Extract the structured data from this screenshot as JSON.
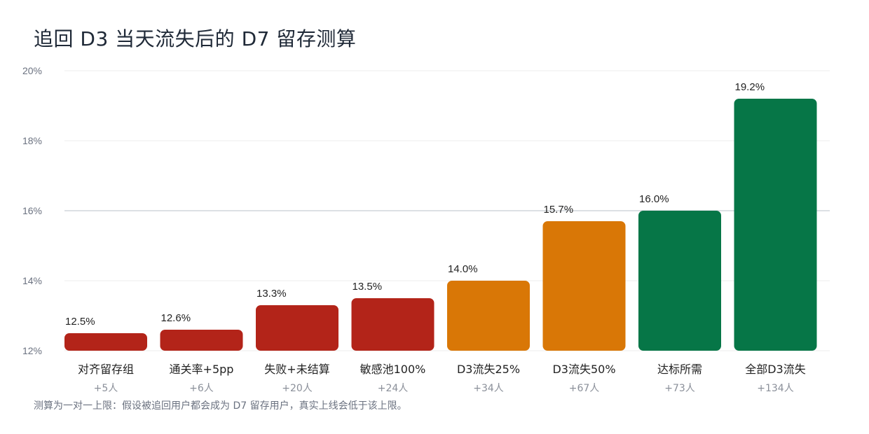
{
  "title": "追回 D3 当天流失后的 D7 留存测算",
  "footnote": "测算为一对一上限：假设被追回用户都会成为 D7 留存用户，真实上线会低于该上限。",
  "colors": {
    "red": "#b32419",
    "orange": "#d97706",
    "green": "#067647",
    "grid": "#eeeeee",
    "baseline": "#d1d5db"
  },
  "chart_data": {
    "type": "bar",
    "title": "追回 D3 当天流失后的 D7 留存测算",
    "ylim": [
      12,
      20
    ],
    "yticks": [
      12,
      14,
      16,
      18,
      20
    ],
    "ytick_labels": [
      "12%",
      "14%",
      "16%",
      "18%",
      "20%"
    ],
    "reference_line": 16,
    "grid": true,
    "categories": [
      "对齐留存组",
      "通关率+5pp",
      "失败+未结算",
      "敏感池100%",
      "D3流失25%",
      "D3流失50%",
      "达标所需",
      "全部D3流失"
    ],
    "sublabels": [
      "+5人",
      "+6人",
      "+20人",
      "+24人",
      "+34人",
      "+67人",
      "+73人",
      "+134人"
    ],
    "values": [
      12.5,
      12.6,
      13.3,
      13.5,
      14.0,
      15.7,
      16.0,
      19.2
    ],
    "value_labels": [
      "12.5%",
      "12.6%",
      "13.3%",
      "13.5%",
      "14.0%",
      "15.7%",
      "16.0%",
      "19.2%"
    ],
    "bar_colors": [
      "red",
      "red",
      "red",
      "red",
      "orange",
      "orange",
      "green",
      "green"
    ]
  }
}
